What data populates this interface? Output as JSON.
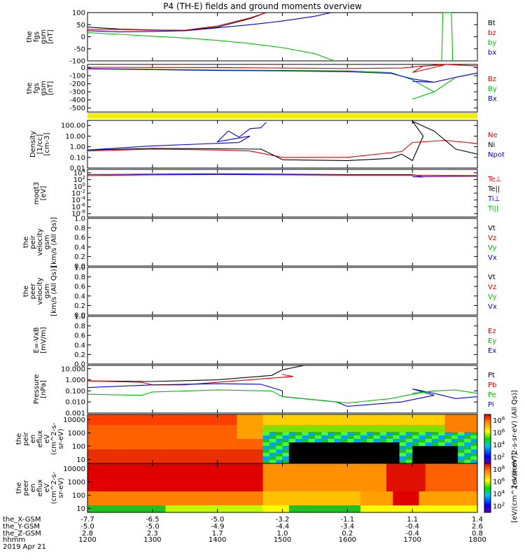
{
  "title": "P4 (TH-E) fields and ground moments overview",
  "chart_data": [
    {
      "type": "line",
      "id": "fgs",
      "ylabel": [
        "the",
        "fgs",
        "gsm",
        "[nT]"
      ],
      "yticks": [
        "100",
        "50",
        "0",
        "-50",
        "-100"
      ],
      "ylim": [
        -100,
        100
      ],
      "legend": [
        {
          "name": "Bt",
          "color": "#000000"
        },
        {
          "name": "bz",
          "color": "#e00000"
        },
        {
          "name": "by",
          "color": "#00c000"
        },
        {
          "name": "bx",
          "color": "#0000e0"
        }
      ],
      "series": [
        {
          "name": "Bt",
          "color": "#000000",
          "x": [
            1200,
            1230,
            1300,
            1330,
            1400,
            1430,
            1445
          ],
          "y": [
            40,
            32,
            28,
            26,
            40,
            75,
            100
          ]
        },
        {
          "name": "bz",
          "color": "#e00000",
          "x": [
            1200,
            1230,
            1300,
            1330,
            1400,
            1430,
            1445
          ],
          "y": [
            30,
            30,
            27,
            27,
            45,
            78,
            100
          ]
        },
        {
          "name": "by",
          "color": "#00c000",
          "x": [
            1200,
            1230,
            1300,
            1330,
            1400,
            1430,
            1500,
            1530,
            1548
          ],
          "y": [
            17,
            10,
            2,
            -5,
            -15,
            -28,
            -45,
            -70,
            -100
          ]
        },
        {
          "name": "bx",
          "color": "#0000e0",
          "x": [
            1200,
            1230,
            1300,
            1330,
            1400,
            1430,
            1500,
            1530,
            1545
          ],
          "y": [
            25,
            20,
            22,
            25,
            37,
            50,
            65,
            85,
            100
          ]
        },
        {
          "name": "by-spike",
          "color": "#00c000",
          "x": [
            1687,
            1688,
            1688,
            1696,
            1697,
            1697
          ],
          "y": [
            -100,
            80,
            100,
            100,
            -50,
            -100
          ]
        }
      ]
    },
    {
      "type": "line",
      "id": "fgs-gse",
      "ylabel": [
        "the",
        "fgs",
        "gsm",
        "[nT]"
      ],
      "yticks": [
        "0",
        "-100",
        "-200",
        "-300",
        "-400",
        "-500"
      ],
      "ylim": [
        -550,
        40
      ],
      "legend": [
        {
          "name": "Bz",
          "color": "#e00000"
        },
        {
          "name": "By",
          "color": "#00c000"
        },
        {
          "name": "Bx",
          "color": "#0000e0"
        }
      ],
      "series": [
        {
          "name": "Bz",
          "color": "#e00000",
          "x": [
            1200,
            1300,
            1400,
            1500,
            1600,
            1650,
            1670,
            1690,
            1700,
            1710,
            1730,
            1760,
            1800
          ],
          "y": [
            5,
            3,
            2,
            -5,
            -10,
            -5,
            20,
            35,
            -60,
            20,
            50,
            20,
            5
          ]
        },
        {
          "name": "By",
          "color": "#00c000",
          "x": [
            1200,
            1300,
            1400,
            1500,
            1600,
            1640,
            1660,
            1680,
            1700,
            1720,
            1740,
            1770,
            1800
          ],
          "y": [
            -10,
            -20,
            -30,
            -35,
            -40,
            -60,
            -150,
            -300,
            -390,
            -300,
            -120,
            -40,
            -20
          ]
        },
        {
          "name": "Bx",
          "color": "#0000e0",
          "x": [
            1200,
            1300,
            1400,
            1500,
            1600,
            1640,
            1660,
            1680,
            1700,
            1720,
            1740,
            1770,
            1800
          ],
          "y": [
            -15,
            -25,
            -35,
            -40,
            -50,
            -70,
            -140,
            -180,
            -170,
            -180,
            -120,
            -40,
            -30
          ]
        }
      ]
    },
    {
      "type": "line",
      "id": "density",
      "ylabel": [
        "Density",
        "[1/cc]",
        "[cm-3]"
      ],
      "yticks": [
        "100.00",
        "10.00",
        "1.00",
        "0.10",
        "0.01"
      ],
      "log": true,
      "ylim": [
        0.01,
        300
      ],
      "legend": [
        {
          "name": "Ne",
          "color": "#e00000"
        },
        {
          "name": "Ni",
          "color": "#000000"
        },
        {
          "name": "Npot",
          "color": "#0000e0"
        }
      ],
      "series": [
        {
          "name": "Ne",
          "color": "#e00000",
          "x": [
            1200,
            1300,
            1400,
            1430,
            1445,
            1500,
            1600,
            1650,
            1700,
            1730,
            1760,
            1800
          ],
          "y": [
            0.4,
            0.6,
            0.5,
            0.4,
            0.2,
            0.1,
            0.1,
            0.35,
            2.5,
            4.0,
            2.0,
            0.7
          ]
        },
        {
          "name": "Ni",
          "color": "#000000",
          "x": [
            1200,
            1300,
            1400,
            1440,
            1450,
            1500,
            1600,
            1640,
            1650,
            1660,
            1670,
            1700,
            1720,
            1740,
            1760,
            1780,
            1800
          ],
          "y": [
            0.5,
            0.7,
            0.65,
            0.6,
            0.2,
            0.06,
            0.05,
            0.08,
            0.2,
            0.05,
            10,
            250,
            30,
            0.6,
            0.2,
            0.5,
            0.9
          ]
        },
        {
          "name": "Npot",
          "color": "#0000e0",
          "x": [
            1200,
            1300,
            1380,
            1390,
            1400,
            1410,
            1420,
            1430,
            1440,
            1445
          ],
          "y": [
            0.5,
            1.2,
            2.5,
            10,
            3,
            30,
            8,
            50,
            60,
            200
          ]
        }
      ]
    },
    {
      "type": "line",
      "id": "moqt3",
      "ylabel": [
        "moqt3",
        "[eV]"
      ],
      "yticks": [
        "10^4",
        "10^2",
        "10^0",
        "10^-2",
        "10^-4",
        "10^-6",
        "10^-8"
      ],
      "log": true,
      "ylim": [
        1e-09,
        100000.0
      ],
      "legend": [
        {
          "name": "Te⊥",
          "color": "#e00000"
        },
        {
          "name": "Te||",
          "color": "#000000"
        },
        {
          "name": "Ti⊥",
          "color": "#0000e0"
        },
        {
          "name": "Ti||",
          "color": "#00c000"
        }
      ],
      "series": [
        {
          "name": "Ti",
          "color": "#0000e0",
          "x": [
            1200,
            1300,
            1400,
            1500,
            1600,
            1660,
            1670,
            1700,
            1740,
            1800
          ],
          "y": [
            3000,
            4000,
            5000,
            4000,
            3000,
            3000,
            600,
            700,
            900,
            1000
          ]
        },
        {
          "name": "Te",
          "color": "#e00000",
          "x": [
            1200,
            1300,
            1400,
            1500,
            1600,
            1700,
            1800
          ],
          "y": [
            1500,
            2500,
            3000,
            2500,
            2000,
            2000,
            1500
          ]
        }
      ]
    },
    {
      "type": "line",
      "id": "peir-velocity",
      "ylabel": [
        "the",
        "peir",
        "velocity",
        "gsm",
        "[km/s (All Qs)]"
      ],
      "yticks": [
        "1.0",
        "0.8",
        "0.6",
        "0.4",
        "0.2",
        "0.0"
      ],
      "ylim": [
        0,
        1
      ],
      "legend": [
        {
          "name": "Vt",
          "color": "#000000"
        },
        {
          "name": "Vz",
          "color": "#e00000"
        },
        {
          "name": "Vy",
          "color": "#00c000"
        },
        {
          "name": "Vx",
          "color": "#0000e0"
        }
      ],
      "series": []
    },
    {
      "type": "line",
      "id": "peer-velocity",
      "ylabel": [
        "the",
        "peer",
        "velocity",
        "gsm",
        "[km/s (All Qs)]"
      ],
      "yticks": [
        "1.0",
        "0.8",
        "0.6",
        "0.4",
        "0.2",
        "0.0"
      ],
      "ylim": [
        0,
        1
      ],
      "legend": [
        {
          "name": "Vt",
          "color": "#000000"
        },
        {
          "name": "Vz",
          "color": "#e00000"
        },
        {
          "name": "Vy",
          "color": "#00c000"
        },
        {
          "name": "Vx",
          "color": "#0000e0"
        }
      ],
      "series": []
    },
    {
      "type": "line",
      "id": "e-field",
      "ylabel": [
        "E=-VxB",
        "[mV/m]"
      ],
      "yticks": [
        "1.0",
        "0.8",
        "0.6",
        "0.4",
        "0.2",
        "0.0"
      ],
      "ylim": [
        0,
        1
      ],
      "legend": [
        {
          "name": "Ez",
          "color": "#e00000"
        },
        {
          "name": "Ey",
          "color": "#00c000"
        },
        {
          "name": "Ex",
          "color": "#0000e0"
        }
      ],
      "series": []
    },
    {
      "type": "line",
      "id": "pressure",
      "ylabel": [
        "Pressure",
        "[nPa]"
      ],
      "yticks": [
        "10.000",
        "1.000",
        "0.100",
        "0.010",
        "0.001"
      ],
      "log": true,
      "ylim": [
        0.001,
        20
      ],
      "legend": [
        {
          "name": "Pt",
          "color": "#000000"
        },
        {
          "name": "Pb",
          "color": "#e00000"
        },
        {
          "name": "Pe",
          "color": "#00c000"
        },
        {
          "name": "Pi",
          "color": "#0000e0"
        }
      ],
      "series": [
        {
          "name": "Pt",
          "color": "#000000",
          "x": [
            1200,
            1300,
            1400,
            1450,
            1500,
            1520
          ],
          "y": [
            0.8,
            0.7,
            1.0,
            2.5,
            8,
            20
          ]
        },
        {
          "name": "Pb",
          "color": "#e00000",
          "x": [
            1200,
            1250,
            1300,
            1330,
            1400,
            1440,
            1470,
            1500
          ],
          "y": [
            0.8,
            0.6,
            0.35,
            0.35,
            0.6,
            1.2,
            2.0,
            3.0
          ]
        },
        {
          "name": "Pi",
          "color": "#0000e0",
          "x": [
            1200,
            1300,
            1400,
            1440,
            1460,
            1500,
            1550,
            1600,
            1650,
            1680,
            1700,
            1720,
            1740,
            1760,
            1800
          ],
          "y": [
            0.2,
            0.35,
            0.45,
            0.4,
            0.1,
            0.03,
            0.01,
            0.004,
            0.01,
            0.04,
            0.15,
            0.06,
            0.02,
            0.03,
            0.02
          ]
        },
        {
          "name": "Pe",
          "color": "#00c000",
          "x": [
            1200,
            1250,
            1300,
            1400,
            1450,
            1500,
            1550,
            1600,
            1640,
            1660,
            1680,
            1700,
            1720,
            1740,
            1760,
            1800
          ],
          "y": [
            0.05,
            0.04,
            0.08,
            0.12,
            0.1,
            0.03,
            0.01,
            0.008,
            0.02,
            0.05,
            0.1,
            0.06,
            0.1,
            0.12,
            0.06,
            0.02
          ]
        }
      ]
    },
    {
      "type": "heatmap",
      "id": "peir-en-eflux",
      "ylabel": [
        "the",
        "peir",
        "en",
        "eflux",
        "eV",
        "(cm^2-s-",
        "sr-eV)"
      ],
      "yticks": [
        "10000",
        "1000",
        "100",
        "10"
      ],
      "colorbar_ticks": [
        "10^8",
        "10^6",
        "10^4",
        "10^2"
      ],
      "colorbar_label": "[eV/(cm^2-s-sr-eV) (All Qs)]"
    },
    {
      "type": "heatmap",
      "id": "peer-en-eflux",
      "ylabel": [
        "the",
        "peer",
        "en",
        "eflux",
        "eV",
        "(cm^2-s-",
        "sr-eV)"
      ],
      "yticks": [
        "10000",
        "1000",
        "100",
        "10"
      ],
      "colorbar_ticks": [
        "10^8",
        "10^6",
        "10^4",
        "10^2"
      ],
      "colorbar_label": "[eV/(cm^2-s-sr-eV)]"
    }
  ],
  "xaxis": {
    "rows": [
      "the_X-GSM",
      "the_Y-GSM",
      "the_Z-GSM",
      "hhmm",
      "2019 Apr 21"
    ],
    "columns": [
      {
        "x": "-7.7",
        "y": "-5.0",
        "z": "2.8",
        "t": "1200"
      },
      {
        "x": "-6.5",
        "y": "-5.0",
        "z": "2.3",
        "t": "1300"
      },
      {
        "x": "-5.0",
        "y": "-4.9",
        "z": "1.7",
        "t": "1400"
      },
      {
        "x": "-3.2",
        "y": "-4.4",
        "z": "1.0",
        "t": "1500"
      },
      {
        "x": "-1.1",
        "y": "-3.4",
        "z": "0.2",
        "t": "1600"
      },
      {
        "x": "1.1",
        "y": "-0.4",
        "z": "-0.4",
        "t": "1700"
      },
      {
        "x": "1.4",
        "y": "2.6",
        "z": "0.8",
        "t": "1800"
      }
    ]
  }
}
